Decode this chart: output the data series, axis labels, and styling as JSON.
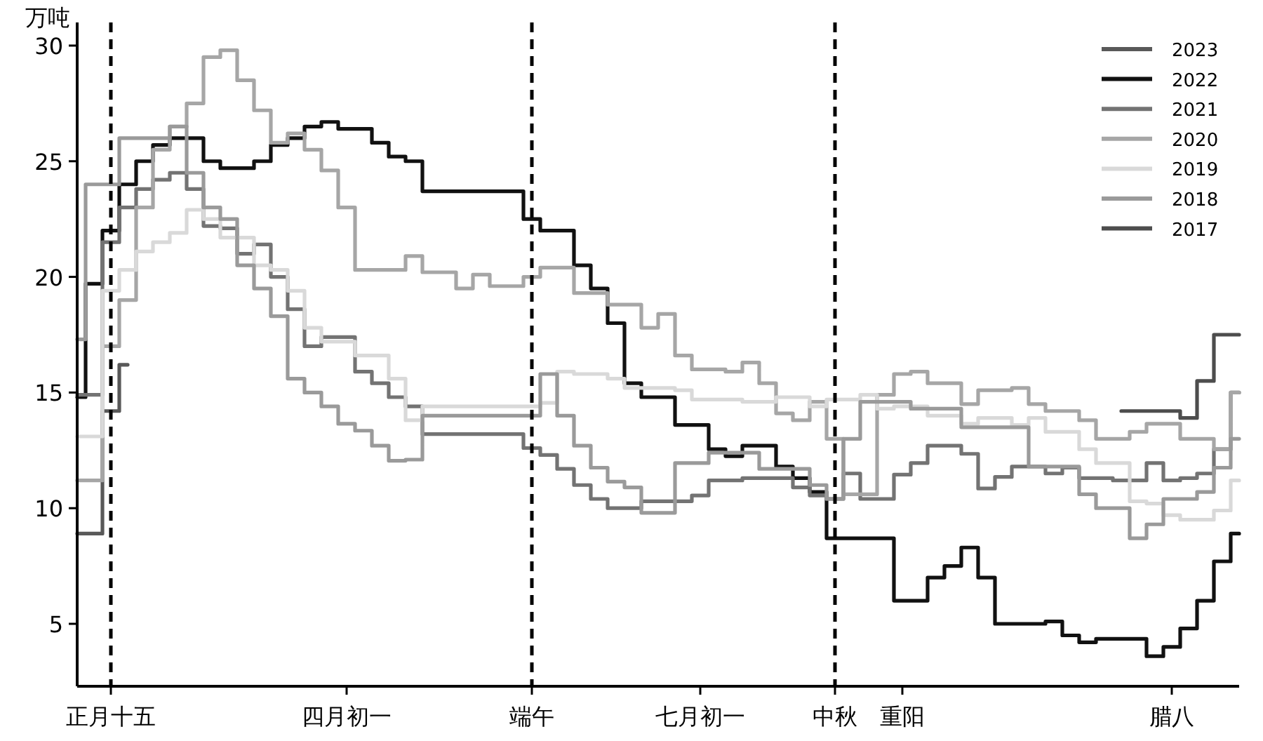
{
  "chart_data": {
    "type": "step",
    "ylabel": "万吨",
    "ylim": [
      2.3,
      31
    ],
    "yticks": [
      5,
      10,
      15,
      20,
      25,
      30
    ],
    "categories": [
      null,
      null,
      "正月十五",
      null,
      null,
      null,
      null,
      null,
      null,
      null,
      null,
      null,
      null,
      null,
      null,
      null,
      "四月初一",
      null,
      null,
      null,
      null,
      null,
      null,
      null,
      null,
      null,
      null,
      "端午",
      null,
      null,
      null,
      null,
      null,
      null,
      null,
      null,
      null,
      "七月初一",
      null,
      null,
      null,
      null,
      null,
      null,
      null,
      "中秋",
      null,
      null,
      null,
      "重阳",
      null,
      null,
      null,
      null,
      null,
      null,
      null,
      null,
      null,
      null,
      null,
      null,
      null,
      null,
      null,
      "腊八",
      null,
      null,
      null,
      null
    ],
    "grid": false,
    "legend": "top right",
    "line_style": "solid",
    "marker": "none",
    "ref_lines": [
      {
        "axis": "x",
        "value": "正月十五",
        "color": "#000000",
        "line_style": "dashed"
      },
      {
        "axis": "x",
        "value": "端午",
        "color": "#000000",
        "line_style": "dashed"
      },
      {
        "axis": "x",
        "value": "中秋",
        "color": "#000000",
        "line_style": "dashed"
      }
    ],
    "series": [
      {
        "name": "2023",
        "color": "#595959",
        "values": [
          8.9,
          8.9,
          14.2,
          16.2,
          null,
          null,
          null,
          null,
          null,
          null,
          null,
          null,
          null,
          null,
          null,
          null,
          null,
          null,
          null,
          null,
          null,
          null,
          null,
          null,
          null,
          null,
          null,
          null,
          null,
          null,
          null,
          null,
          null,
          null,
          null,
          null,
          null,
          null,
          null,
          null,
          null,
          null,
          null,
          null,
          null,
          null,
          null,
          null,
          null,
          null,
          null,
          null,
          null,
          null,
          null,
          null,
          null,
          null,
          null,
          null,
          null,
          null,
          null,
          null,
          null,
          null,
          null,
          null,
          null,
          null
        ]
      },
      {
        "name": "2022",
        "color": "#111111",
        "values": [
          14.8,
          19.7,
          22,
          24,
          25,
          25.7,
          26,
          26,
          25,
          24.7,
          24.7,
          25,
          25.7,
          26,
          26.5,
          26.7,
          26.4,
          26.4,
          25.8,
          25.2,
          25,
          23.7,
          23.7,
          23.7,
          23.7,
          23.7,
          23.7,
          22.5,
          22,
          22,
          20.5,
          19.5,
          18,
          15.4,
          14.8,
          14.8,
          13.6,
          13.6,
          12.55,
          12.25,
          12.7,
          12.7,
          11.8,
          11.3,
          10.7,
          8.7,
          8.7,
          8.7,
          8.7,
          6,
          6,
          7,
          7.5,
          8.3,
          7,
          5,
          5,
          5,
          5.1,
          4.5,
          4.2,
          4.35,
          4.35,
          4.35,
          3.6,
          4,
          4.8,
          6,
          7.7,
          8.9
        ]
      },
      {
        "name": "2021",
        "color": "#737373",
        "values": [
          14.9,
          14.9,
          21.5,
          23,
          23.8,
          24.2,
          24.5,
          23.8,
          22.2,
          22.1,
          21,
          21.4,
          20,
          18.6,
          17,
          17.4,
          17.4,
          15.9,
          15.4,
          14.8,
          14.4,
          13.2,
          13.2,
          13.2,
          13.2,
          13.2,
          13.2,
          12.6,
          12.3,
          11.7,
          11,
          10.4,
          10,
          10,
          10.3,
          10.3,
          10.3,
          10.55,
          11.2,
          11.2,
          11.3,
          11.3,
          11.3,
          10.9,
          10.55,
          10.4,
          11.5,
          10.4,
          10.4,
          11.45,
          11.95,
          12.7,
          12.7,
          12.35,
          10.85,
          11.35,
          11.8,
          11.8,
          11.5,
          11.75,
          11.3,
          11.3,
          11.2,
          11.2,
          11.95,
          11.2,
          11.3,
          11.5,
          12.55,
          15
        ]
      },
      {
        "name": "2020",
        "color": "#a6a6a6",
        "values": [
          11.2,
          11.2,
          17,
          19,
          23,
          25.5,
          26.5,
          27.5,
          29.5,
          29.8,
          28.5,
          27.2,
          25.8,
          26.2,
          25.5,
          24.6,
          23,
          20.3,
          20.3,
          20.3,
          20.9,
          20.2,
          20.2,
          19.5,
          20.1,
          19.6,
          19.6,
          20,
          20.4,
          20.4,
          19.3,
          19.3,
          18.8,
          18.8,
          17.8,
          18.4,
          16.6,
          16,
          16,
          15.9,
          16.3,
          15.4,
          14.1,
          13.8,
          14.6,
          13,
          10.6,
          10.6,
          14.9,
          15.8,
          15.9,
          15.4,
          15.4,
          14.5,
          15.1,
          15.1,
          15.2,
          14.5,
          14.2,
          14.2,
          13.8,
          13,
          13,
          13.3,
          13.65,
          13.65,
          13,
          13,
          12.55,
          15
        ]
      },
      {
        "name": "2019",
        "color": "#d9d9d9",
        "values": [
          13.1,
          13.1,
          19.4,
          20.3,
          21.1,
          21.5,
          21.9,
          22.9,
          22.5,
          21.7,
          21.7,
          20.5,
          20.3,
          19.4,
          17.8,
          17.2,
          17.2,
          16.6,
          16.6,
          15.6,
          13.8,
          14.4,
          14.4,
          14.4,
          14.4,
          14.4,
          14.4,
          14.4,
          14.55,
          15.9,
          15.8,
          15.8,
          15.6,
          15.2,
          15.2,
          15.2,
          15.1,
          14.7,
          14.7,
          14.7,
          14.6,
          14.6,
          14.8,
          14.8,
          14.4,
          14.7,
          14.7,
          14.9,
          14.3,
          14.4,
          14.4,
          14,
          14,
          13.65,
          13.9,
          13.9,
          13.6,
          13.9,
          13.3,
          13.3,
          12.55,
          11.95,
          11.95,
          10.3,
          10.2,
          9.7,
          9.5,
          9.5,
          9.9,
          11.2
        ]
      },
      {
        "name": "2018",
        "color": "#9a9a9a",
        "values": [
          17.3,
          24,
          24,
          26,
          26,
          26,
          26.5,
          24.5,
          23,
          22.5,
          20.5,
          19.5,
          18.3,
          15.6,
          15,
          14.4,
          13.65,
          13.35,
          12.7,
          12.05,
          12.1,
          14,
          14,
          14,
          14,
          14,
          14,
          14,
          15.8,
          14,
          12.7,
          11.75,
          11.15,
          10.9,
          9.8,
          9.8,
          11.95,
          11.95,
          12.4,
          12.4,
          12.4,
          11.7,
          11.7,
          11.7,
          11,
          10.4,
          13,
          14.6,
          14.6,
          14.6,
          14.3,
          14.3,
          14.3,
          13.5,
          13.5,
          13.5,
          13.5,
          11.8,
          11.8,
          11.8,
          10.6,
          10,
          10,
          8.7,
          9.3,
          10.4,
          10.4,
          10.7,
          11.75,
          13
        ]
      },
      {
        "name": "2017",
        "color": "#4d4d4d",
        "values": [
          null,
          null,
          null,
          null,
          null,
          null,
          null,
          null,
          null,
          null,
          null,
          null,
          null,
          null,
          null,
          null,
          null,
          null,
          null,
          null,
          null,
          null,
          null,
          null,
          null,
          null,
          null,
          null,
          null,
          null,
          null,
          null,
          null,
          null,
          null,
          null,
          null,
          null,
          null,
          null,
          null,
          null,
          null,
          null,
          null,
          null,
          null,
          null,
          null,
          null,
          null,
          null,
          null,
          null,
          null,
          null,
          null,
          null,
          null,
          null,
          null,
          null,
          14.2,
          14.2,
          14.2,
          14.2,
          13.9,
          15.5,
          17.5,
          17.5
        ]
      }
    ]
  }
}
